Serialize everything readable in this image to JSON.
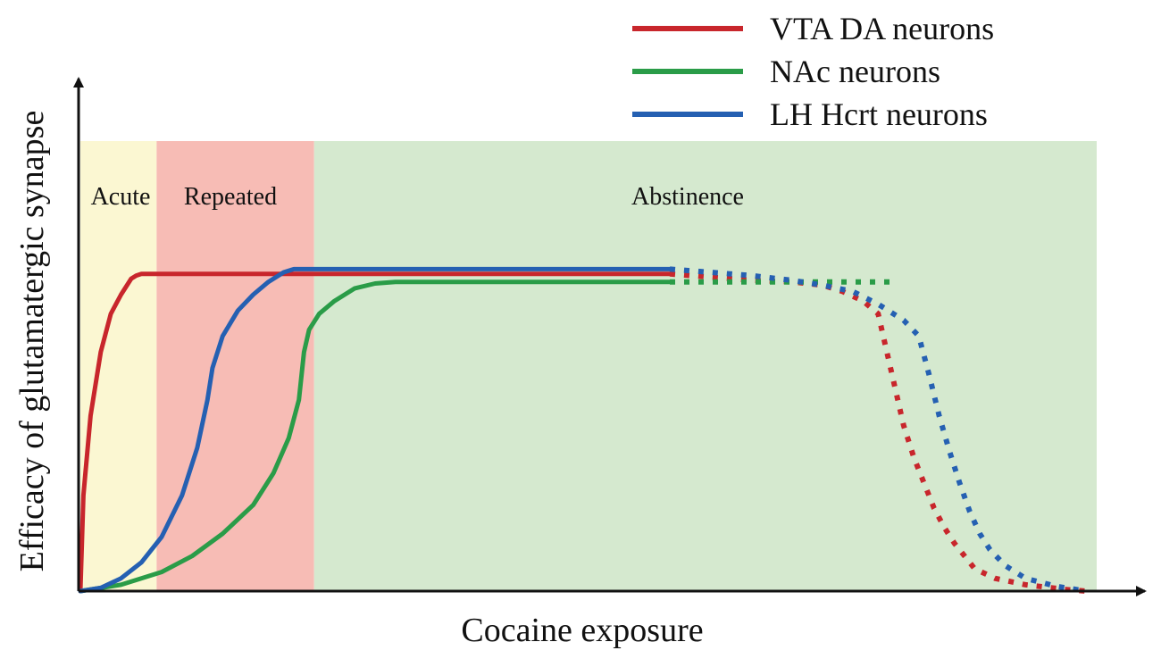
{
  "chart_data": {
    "type": "line",
    "title": "",
    "xlabel": "Cocaine exposure",
    "ylabel": "Efficacy of glutamatergic synapse",
    "xlim": [
      0,
      100
    ],
    "ylim": [
      0,
      100
    ],
    "grid": false,
    "legend_position": "top-right",
    "phases": [
      {
        "label": "Acute",
        "x_start": 0,
        "x_end": 7.5,
        "color": "#fbf7d2"
      },
      {
        "label": "Repeated",
        "x_start": 7.5,
        "x_end": 23,
        "color": "#f7bcb5"
      },
      {
        "label": "Abstinence",
        "x_start": 23,
        "x_end": 100,
        "color": "#d5e9cf"
      }
    ],
    "series": [
      {
        "name": "VTA DA neurons",
        "color": "#c8262c",
        "solid": [
          [
            0,
            0
          ],
          [
            0.3,
            30
          ],
          [
            1,
            55
          ],
          [
            2,
            75
          ],
          [
            3,
            87
          ],
          [
            4,
            93
          ],
          [
            5,
            98
          ],
          [
            5.5,
            99
          ],
          [
            6,
            99.5
          ],
          [
            58,
            99.5
          ]
        ],
        "dotted": [
          [
            58,
            99.5
          ],
          [
            62,
            98.5
          ],
          [
            66,
            97.5
          ],
          [
            70,
            97
          ],
          [
            73,
            96
          ],
          [
            75,
            94
          ],
          [
            77,
            91
          ],
          [
            78.5,
            87
          ],
          [
            79,
            80
          ],
          [
            80,
            66
          ],
          [
            81,
            52
          ],
          [
            82,
            42
          ],
          [
            83,
            34
          ],
          [
            84,
            26
          ],
          [
            85,
            20
          ],
          [
            86,
            15
          ],
          [
            87,
            11
          ],
          [
            88,
            7
          ],
          [
            90,
            4
          ],
          [
            93,
            2
          ],
          [
            97,
            0.5
          ],
          [
            99,
            0
          ]
        ]
      },
      {
        "name": "NAc neurons",
        "color": "#2a9c48",
        "solid": [
          [
            0,
            0
          ],
          [
            4,
            2
          ],
          [
            8,
            6
          ],
          [
            11,
            11
          ],
          [
            14,
            18
          ],
          [
            17,
            27
          ],
          [
            19,
            37
          ],
          [
            20.5,
            48
          ],
          [
            21.5,
            60
          ],
          [
            22,
            75
          ],
          [
            22.5,
            82
          ],
          [
            23.5,
            87
          ],
          [
            25,
            91
          ],
          [
            27,
            95
          ],
          [
            29,
            96.5
          ],
          [
            31,
            97
          ],
          [
            58,
            97
          ]
        ],
        "dotted": [
          [
            58,
            97
          ],
          [
            80,
            97
          ]
        ]
      },
      {
        "name": "LH Hcrt neurons",
        "color": "#2560b2",
        "solid": [
          [
            0,
            0
          ],
          [
            2,
            1
          ],
          [
            4,
            4
          ],
          [
            6,
            9
          ],
          [
            8,
            17
          ],
          [
            10,
            30
          ],
          [
            11.5,
            45
          ],
          [
            12.5,
            60
          ],
          [
            13,
            70
          ],
          [
            14,
            80
          ],
          [
            15.5,
            88
          ],
          [
            17,
            93
          ],
          [
            18.5,
            97
          ],
          [
            20,
            100
          ],
          [
            21,
            101
          ],
          [
            58,
            101
          ]
        ],
        "dotted": [
          [
            58,
            101
          ],
          [
            62,
            100
          ],
          [
            66,
            99
          ],
          [
            70,
            97.5
          ],
          [
            73,
            96
          ],
          [
            76,
            94
          ],
          [
            78.5,
            90
          ],
          [
            81,
            85
          ],
          [
            82.5,
            80
          ],
          [
            83.5,
            68
          ],
          [
            84.5,
            55
          ],
          [
            85.5,
            44
          ],
          [
            86.5,
            34
          ],
          [
            87.5,
            25
          ],
          [
            88.5,
            18
          ],
          [
            89.5,
            13
          ],
          [
            91,
            8
          ],
          [
            93,
            4
          ],
          [
            96,
            1.5
          ],
          [
            98,
            0.5
          ],
          [
            99,
            0
          ]
        ]
      }
    ]
  }
}
